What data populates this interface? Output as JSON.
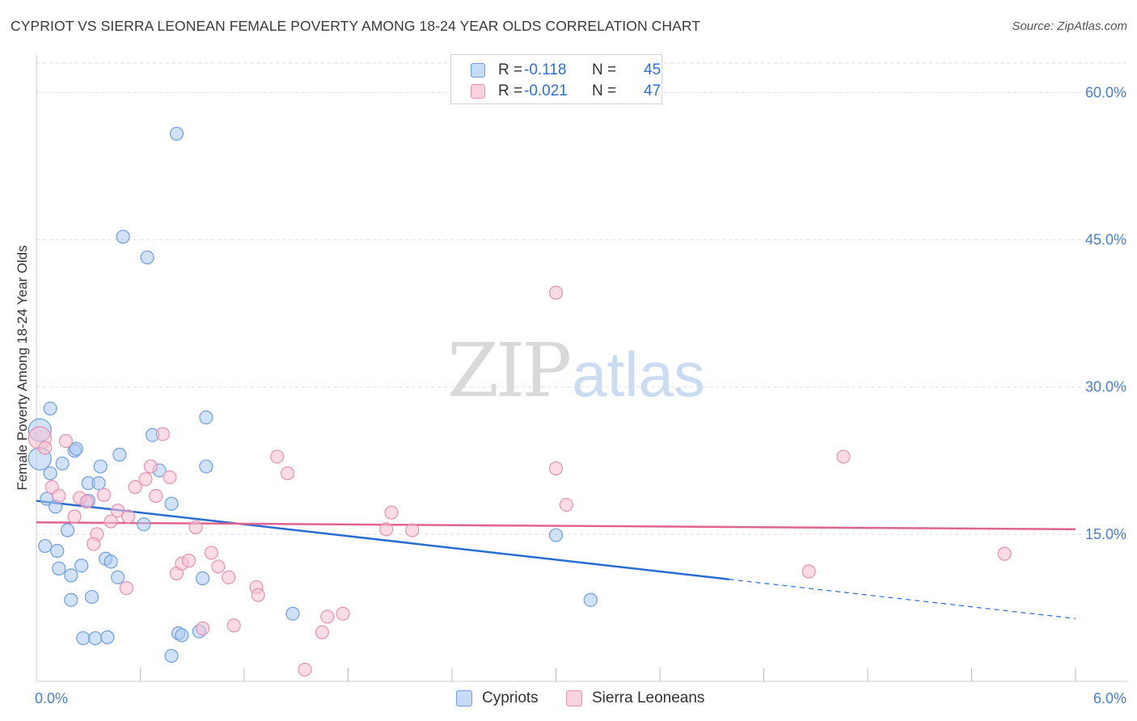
{
  "title": "CYPRIOT VS SIERRA LEONEAN FEMALE POVERTY AMONG 18-24 YEAR OLDS CORRELATION CHART",
  "source": "Source: ZipAtlas.com",
  "watermark": {
    "zip": "ZIP",
    "atlas": "atlas"
  },
  "legend": {
    "series": [
      {
        "r_label": "R =",
        "r_value": "-0.118",
        "n_label": "N =",
        "n_value": "45"
      },
      {
        "r_label": "R =",
        "r_value": "-0.021",
        "n_label": "N =",
        "n_value": "47"
      }
    ],
    "bottom": [
      "Cypriots",
      "Sierra Leoneans"
    ]
  },
  "colors": {
    "blue_fill": "#aac8f2",
    "blue_stroke": "#6f9fdc",
    "blue_line": "#2a6dd1",
    "pink_fill": "#f7bfd1",
    "pink_stroke": "#e592b0",
    "pink_line": "#e0648e",
    "grid": "#dedede",
    "axis": "#cccccc",
    "tick_text": "#4a7fd0"
  },
  "chart_data": {
    "type": "scatter",
    "title": "CYPRIOT VS SIERRA LEONEAN FEMALE POVERTY AMONG 18-24 YEAR OLDS CORRELATION CHART",
    "xlabel": "",
    "ylabel": "Female Poverty Among 18-24 Year Olds",
    "xlim": [
      0,
      6
    ],
    "ylim": [
      0,
      63
    ],
    "x_tick_labels": [
      {
        "value": 0,
        "label": "0.0%"
      },
      {
        "value": 6,
        "label": "6.0%"
      }
    ],
    "x_minor_ticks": [
      0.6,
      1.2,
      1.8,
      2.4,
      3.0,
      3.6,
      4.2,
      4.8,
      5.4,
      6.0
    ],
    "y_ticks": [
      {
        "value": 15,
        "label": "15.0%"
      },
      {
        "value": 30,
        "label": "30.0%"
      },
      {
        "value": 45,
        "label": "45.0%"
      },
      {
        "value": 60,
        "label": "60.0%"
      }
    ],
    "series": [
      {
        "name": "Cypriots",
        "color": "#aac8f2",
        "r": -0.118,
        "n": 45,
        "trend": {
          "x0": 0.0,
          "y0": 18.4,
          "x1": 4.0,
          "y1": 10.4,
          "dash_x1": 6.0,
          "dash_y1": 6.4
        },
        "points": [
          [
            0.02,
            25.6
          ],
          [
            0.02,
            22.7
          ],
          [
            0.08,
            27.8
          ],
          [
            0.06,
            18.6
          ],
          [
            0.08,
            21.2
          ],
          [
            0.11,
            17.8
          ],
          [
            0.15,
            22.2
          ],
          [
            0.22,
            23.5
          ],
          [
            0.23,
            23.7
          ],
          [
            0.3,
            20.2
          ],
          [
            0.3,
            18.4
          ],
          [
            0.37,
            21.9
          ],
          [
            0.36,
            20.2
          ],
          [
            0.18,
            15.4
          ],
          [
            0.05,
            13.8
          ],
          [
            0.12,
            13.3
          ],
          [
            0.13,
            11.5
          ],
          [
            0.2,
            10.8
          ],
          [
            0.26,
            11.8
          ],
          [
            0.2,
            8.3
          ],
          [
            0.32,
            8.6
          ],
          [
            0.4,
            12.5
          ],
          [
            0.43,
            12.2
          ],
          [
            0.47,
            10.6
          ],
          [
            0.48,
            23.1
          ],
          [
            0.5,
            45.3
          ],
          [
            0.64,
            43.2
          ],
          [
            0.81,
            55.8
          ],
          [
            0.67,
            25.1
          ],
          [
            0.71,
            21.5
          ],
          [
            0.78,
            18.1
          ],
          [
            0.62,
            16.0
          ],
          [
            0.98,
            26.9
          ],
          [
            0.98,
            21.9
          ],
          [
            0.96,
            10.5
          ],
          [
            0.82,
            4.9
          ],
          [
            0.84,
            4.7
          ],
          [
            0.94,
            5.1
          ],
          [
            0.78,
            2.6
          ],
          [
            0.27,
            4.4
          ],
          [
            0.34,
            4.4
          ],
          [
            0.41,
            4.5
          ],
          [
            1.48,
            6.9
          ],
          [
            3.0,
            14.9
          ],
          [
            3.2,
            8.3
          ]
        ]
      },
      {
        "name": "Sierra Leoneans",
        "color": "#f7bfd1",
        "r": -0.021,
        "n": 47,
        "trend": {
          "x0": 0.0,
          "y0": 16.2,
          "x1": 6.0,
          "y1": 15.5
        },
        "points": [
          [
            0.02,
            24.8
          ],
          [
            0.05,
            23.8
          ],
          [
            0.17,
            24.5
          ],
          [
            0.09,
            19.8
          ],
          [
            0.13,
            18.9
          ],
          [
            0.25,
            18.7
          ],
          [
            0.29,
            18.3
          ],
          [
            0.39,
            19.0
          ],
          [
            0.22,
            16.8
          ],
          [
            0.35,
            15.0
          ],
          [
            0.33,
            14.0
          ],
          [
            0.43,
            16.3
          ],
          [
            0.47,
            17.4
          ],
          [
            0.53,
            16.8
          ],
          [
            0.52,
            9.5
          ],
          [
            0.57,
            19.8
          ],
          [
            0.63,
            20.6
          ],
          [
            0.66,
            21.9
          ],
          [
            0.69,
            18.9
          ],
          [
            0.73,
            25.2
          ],
          [
            0.77,
            20.8
          ],
          [
            0.81,
            11.0
          ],
          [
            0.84,
            12.0
          ],
          [
            0.88,
            12.3
          ],
          [
            0.92,
            15.7
          ],
          [
            0.96,
            5.4
          ],
          [
            1.01,
            13.1
          ],
          [
            1.05,
            11.7
          ],
          [
            1.11,
            10.6
          ],
          [
            1.14,
            5.7
          ],
          [
            1.27,
            9.6
          ],
          [
            1.28,
            8.8
          ],
          [
            1.39,
            22.9
          ],
          [
            1.45,
            21.2
          ],
          [
            1.55,
            1.2
          ],
          [
            1.65,
            5.0
          ],
          [
            1.68,
            6.6
          ],
          [
            1.77,
            6.9
          ],
          [
            2.02,
            15.5
          ],
          [
            2.05,
            17.2
          ],
          [
            2.17,
            15.4
          ],
          [
            3.0,
            39.6
          ],
          [
            3.0,
            21.7
          ],
          [
            3.06,
            18.0
          ],
          [
            4.46,
            11.2
          ],
          [
            4.66,
            22.9
          ],
          [
            5.59,
            13.0
          ]
        ]
      }
    ]
  }
}
